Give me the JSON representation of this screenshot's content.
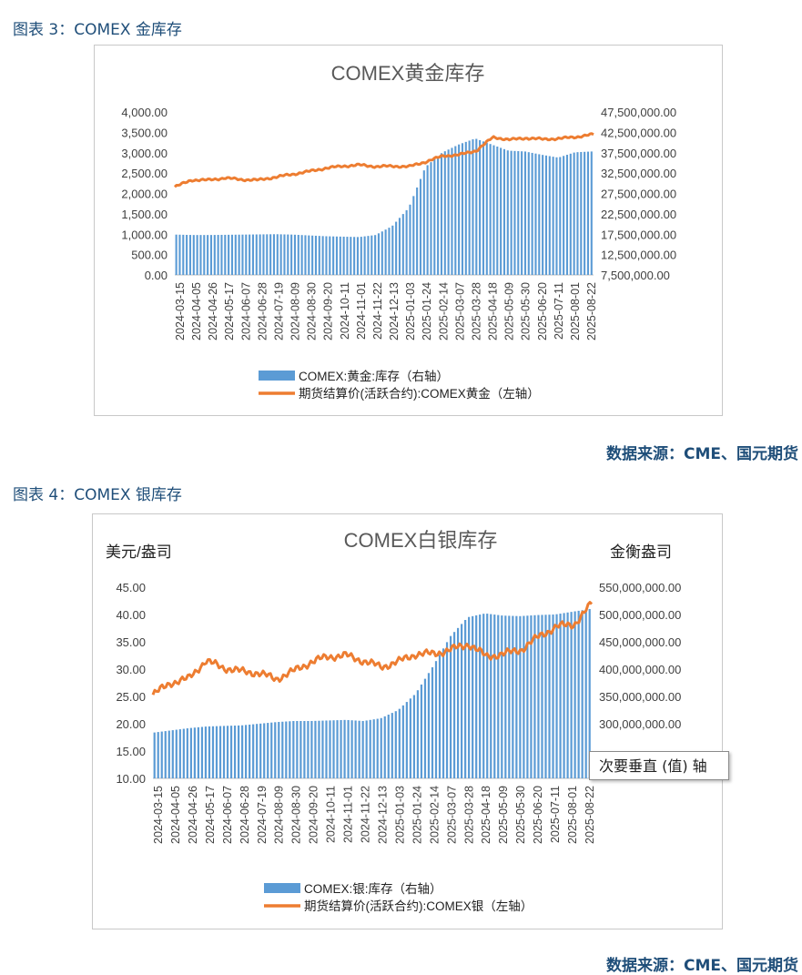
{
  "figure3": {
    "caption": "图表 3：COMEX 金库存",
    "source": "数据来源：CME、国元期货"
  },
  "figure4": {
    "caption": "图表 4：COMEX 银库存",
    "source": "数据来源：CME、国元期货",
    "tooltip": "次要垂直 (值) 轴"
  },
  "chart_data": [
    {
      "type": "bar+line",
      "title": "COMEX黄金库存",
      "left_axis_unit": "",
      "right_axis_unit": "",
      "left_ylim": [
        0,
        4000
      ],
      "left_ticks": [
        "0.00",
        "500.00",
        "1,000.00",
        "1,500.00",
        "2,000.00",
        "2,500.00",
        "3,000.00",
        "3,500.00",
        "4,000.00"
      ],
      "right_ylim": [
        7500000,
        47500000
      ],
      "right_ticks": [
        "7,500,000.00",
        "12,500,000.00",
        "17,500,000.00",
        "22,500,000.00",
        "27,500,000.00",
        "32,500,000.00",
        "37,500,000.00",
        "42,500,000.00",
        "47,500,000.00"
      ],
      "x_ticks": [
        "2024-03-15",
        "2024-04-05",
        "2024-04-26",
        "2024-05-17",
        "2024-06-07",
        "2024-06-28",
        "2024-07-19",
        "2024-08-09",
        "2024-08-30",
        "2024-09-20",
        "2024-10-11",
        "2024-11-01",
        "2024-11-22",
        "2024-12-13",
        "2025-01-03",
        "2025-01-24",
        "2025-02-14",
        "2025-03-07",
        "2025-03-28",
        "2025-04-18",
        "2025-05-09",
        "2025-05-30",
        "2025-06-20",
        "2025-07-11",
        "2025-08-01",
        "2025-08-22"
      ],
      "bar_series": {
        "name": "COMEX:黄金:库存（右轴）",
        "color": "#5b9bd5",
        "values": [
          17400000,
          17300000,
          17300000,
          17350000,
          17400000,
          17450000,
          17500000,
          17400000,
          17200000,
          17000000,
          16900000,
          16800000,
          17300000,
          19500000,
          24000000,
          34000000,
          37500000,
          39500000,
          41000000,
          39500000,
          38000000,
          37800000,
          37000000,
          36300000,
          37600000,
          37800000
        ]
      },
      "line_series": {
        "name": "期货结算价(活跃合约):COMEX黄金（左轴）",
        "color": "#ed7d31",
        "values": [
          2160,
          2330,
          2330,
          2380,
          2340,
          2330,
          2400,
          2470,
          2540,
          2620,
          2670,
          2700,
          2660,
          2670,
          2660,
          2780,
          2920,
          2950,
          3050,
          3380,
          3320,
          3360,
          3330,
          3350,
          3390,
          3450
        ]
      }
    },
    {
      "type": "bar+line",
      "title": "COMEX白银库存",
      "left_axis_unit": "美元/盎司",
      "right_axis_unit": "金衡盎司",
      "left_ylim": [
        10,
        45
      ],
      "left_ticks": [
        "10.00",
        "15.00",
        "20.00",
        "25.00",
        "30.00",
        "35.00",
        "40.00",
        "45.00"
      ],
      "right_ylim": [
        200000000,
        550000000
      ],
      "right_ticks": [
        "",
        "",
        "300,000,000.00",
        "350,000,000.00",
        "400,000,000.00",
        "450,000,000.00",
        "500,000,000.00",
        "550,000,000.00"
      ],
      "x_ticks": [
        "2024-03-15",
        "2024-04-05",
        "2024-04-26",
        "2024-05-17",
        "2024-06-07",
        "2024-06-28",
        "2024-07-19",
        "2024-08-09",
        "2024-08-30",
        "2024-09-20",
        "2024-10-11",
        "2024-11-01",
        "2024-11-22",
        "2024-12-13",
        "2025-01-03",
        "2025-01-24",
        "2025-02-14",
        "2025-03-07",
        "2025-03-28",
        "2025-04-18",
        "2025-05-09",
        "2025-05-30",
        "2025-06-20",
        "2025-07-11",
        "2025-08-01",
        "2025-08-22"
      ],
      "bar_series": {
        "name": "COMEX:银:库存（右轴）",
        "color": "#5b9bd5",
        "values": [
          284000000,
          288000000,
          292000000,
          295000000,
          296000000,
          297000000,
          300000000,
          303000000,
          305000000,
          305000000,
          306000000,
          307000000,
          305000000,
          310000000,
          325000000,
          355000000,
          405000000,
          460000000,
          495000000,
          502000000,
          498000000,
          497000000,
          499000000,
          500000000,
          505000000,
          510000000
        ]
      },
      "line_series": {
        "name": "期货结算价(活跃合约):COMEX银（左轴）",
        "color": "#ed7d31",
        "values": [
          25.3,
          27.5,
          28.2,
          31.5,
          30.3,
          29.6,
          29.3,
          28.2,
          29.6,
          31.3,
          32.3,
          32.5,
          31.5,
          30.4,
          31.4,
          32.8,
          32.8,
          33.6,
          34.6,
          32.3,
          32.8,
          33.6,
          36.0,
          37.8,
          38.2,
          42.0
        ]
      }
    }
  ]
}
